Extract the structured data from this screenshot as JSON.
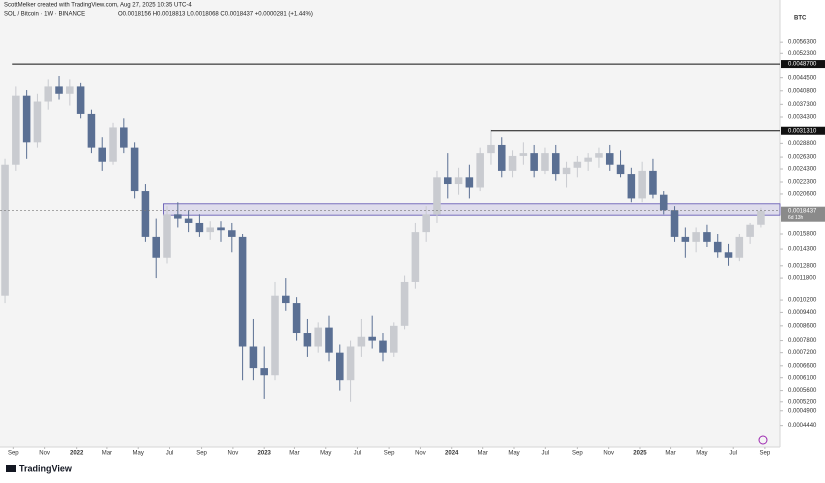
{
  "header": {
    "credit": "ScottMelker created with TradingView.com, Aug 27, 2025 10:35 UTC-4",
    "symbol": "SOL / Bitcoin · 1W · BINANCE",
    "ohlc": "O0.0018156 H0.0018813 L0.0018068 C0.0018437 +0.0000281 (+1.44%)"
  },
  "footer": {
    "logo": "TradingView"
  },
  "chart_data": {
    "type": "candlestick",
    "log_scale": true,
    "grid": false,
    "currency": "BTC",
    "up_color": "#c9cbd0",
    "down_color": "#5a6f93",
    "xlim": [
      -1.4,
      215.3
    ],
    "xticks": [
      {
        "value": 2.3,
        "label": "Sep"
      },
      {
        "value": 11.0,
        "label": "Nov"
      },
      {
        "value": 19.9,
        "label": "2022"
      },
      {
        "value": 28.3,
        "label": "Mar"
      },
      {
        "value": 37.0,
        "label": "May"
      },
      {
        "value": 45.7,
        "label": "Jul"
      },
      {
        "value": 54.6,
        "label": "Sep"
      },
      {
        "value": 63.3,
        "label": "Nov"
      },
      {
        "value": 72.0,
        "label": "2023"
      },
      {
        "value": 80.4,
        "label": "Mar"
      },
      {
        "value": 89.1,
        "label": "May"
      },
      {
        "value": 97.9,
        "label": "Jul"
      },
      {
        "value": 106.7,
        "label": "Sep"
      },
      {
        "value": 115.4,
        "label": "Nov"
      },
      {
        "value": 124.1,
        "label": "2024"
      },
      {
        "value": 132.7,
        "label": "Mar"
      },
      {
        "value": 141.4,
        "label": "May"
      },
      {
        "value": 150.1,
        "label": "Jul"
      },
      {
        "value": 159.0,
        "label": "Sep"
      },
      {
        "value": 167.7,
        "label": "Nov"
      },
      {
        "value": 176.4,
        "label": "2025"
      },
      {
        "value": 184.9,
        "label": "Mar"
      },
      {
        "value": 193.6,
        "label": "May"
      },
      {
        "value": 202.3,
        "label": "Jul"
      },
      {
        "value": 211.1,
        "label": "Sep"
      }
    ],
    "ylim": [
      0.000388,
      0.00706
    ],
    "yticks": [
      {
        "value": 0.00563,
        "label": "0.0056300"
      },
      {
        "value": 0.00523,
        "label": "0.0052300"
      },
      {
        "value": 0.00445,
        "label": "0.0044500"
      },
      {
        "value": 0.00408,
        "label": "0.0040800"
      },
      {
        "value": 0.00373,
        "label": "0.0037300"
      },
      {
        "value": 0.00343,
        "label": "0.0034300"
      },
      {
        "value": 0.00288,
        "label": "0.0028800"
      },
      {
        "value": 0.00263,
        "label": "0.0026300"
      },
      {
        "value": 0.00243,
        "label": "0.0024300"
      },
      {
        "value": 0.00223,
        "label": "0.0022300"
      },
      {
        "value": 0.00206,
        "label": "0.0020600"
      },
      {
        "value": 0.00158,
        "label": "0.0015800"
      },
      {
        "value": 0.00143,
        "label": "0.0014300"
      },
      {
        "value": 0.00128,
        "label": "0.0012800"
      },
      {
        "value": 0.00118,
        "label": "0.0011800"
      },
      {
        "value": 0.00102,
        "label": "0.0010200"
      },
      {
        "value": 0.00094,
        "label": "0.0009400"
      },
      {
        "value": 0.00086,
        "label": "0.0008600"
      },
      {
        "value": 0.00078,
        "label": "0.0007800"
      },
      {
        "value": 0.00072,
        "label": "0.0007200"
      },
      {
        "value": 0.00066,
        "label": "0.0006600"
      },
      {
        "value": 0.00061,
        "label": "0.0006100"
      },
      {
        "value": 0.00056,
        "label": "0.0005600"
      },
      {
        "value": 0.00052,
        "label": "0.0005200"
      },
      {
        "value": 0.00049,
        "label": "0.0004900"
      },
      {
        "value": 0.000444,
        "label": "0.0004440"
      }
    ],
    "x": [
      0,
      3,
      6,
      9,
      12,
      15,
      18,
      21,
      24,
      27,
      30,
      33,
      36,
      39,
      42,
      45,
      48,
      51,
      54,
      57,
      60,
      63,
      66,
      69,
      72,
      75,
      78,
      81,
      84,
      87,
      90,
      93,
      96,
      99,
      102,
      105,
      108,
      111,
      114,
      117,
      120,
      123,
      126,
      129,
      132,
      135,
      138,
      141,
      144,
      147,
      150,
      153,
      156,
      159,
      162,
      165,
      168,
      171,
      174,
      177,
      180,
      183,
      186,
      189,
      192,
      195,
      198,
      201,
      204,
      207,
      210
    ],
    "open": [
      0.00105,
      0.0025,
      0.00395,
      0.0029,
      0.0038,
      0.0042,
      0.004,
      0.0042,
      0.0035,
      0.0028,
      0.00255,
      0.0032,
      0.0028,
      0.0021,
      0.00155,
      0.00135,
      0.0018,
      0.00175,
      0.0017,
      0.0016,
      0.00165,
      0.00162,
      0.00155,
      0.00075,
      0.00065,
      0.00062,
      0.00105,
      0.001,
      0.00082,
      0.00075,
      0.00085,
      0.00072,
      0.0006,
      0.00075,
      0.0008,
      0.00078,
      0.00072,
      0.00086,
      0.00115,
      0.0016,
      0.0018,
      0.0023,
      0.0022,
      0.0023,
      0.00215,
      0.0027,
      0.00285,
      0.0024,
      0.00265,
      0.0027,
      0.0024,
      0.0027,
      0.00235,
      0.00245,
      0.00255,
      0.00262,
      0.0027,
      0.0025,
      0.00235,
      0.002,
      0.0024,
      0.00205,
      0.00185,
      0.00155,
      0.0015,
      0.0016,
      0.0015,
      0.0014,
      0.00135,
      0.00155,
      0.00168
    ],
    "high": [
      0.0026,
      0.0042,
      0.0041,
      0.004,
      0.0044,
      0.0045,
      0.0044,
      0.0043,
      0.0036,
      0.003,
      0.0033,
      0.0034,
      0.0029,
      0.0022,
      0.00175,
      0.0019,
      0.00195,
      0.00185,
      0.0018,
      0.00172,
      0.00172,
      0.0017,
      0.00158,
      0.0009,
      0.00075,
      0.00115,
      0.00118,
      0.00104,
      0.0009,
      0.00088,
      0.00092,
      0.00076,
      0.00078,
      0.0009,
      0.00092,
      0.00082,
      0.00088,
      0.0012,
      0.0017,
      0.0019,
      0.0024,
      0.0027,
      0.00245,
      0.0025,
      0.0028,
      0.00315,
      0.003,
      0.00275,
      0.0029,
      0.00285,
      0.0028,
      0.00285,
      0.00255,
      0.00265,
      0.0027,
      0.0028,
      0.00285,
      0.00275,
      0.00245,
      0.00255,
      0.0026,
      0.0021,
      0.0019,
      0.00165,
      0.00165,
      0.00168,
      0.00158,
      0.00148,
      0.00158,
      0.0017,
      0.00188
    ],
    "low": [
      0.001,
      0.0024,
      0.0026,
      0.0028,
      0.0036,
      0.00385,
      0.0037,
      0.0034,
      0.0027,
      0.0024,
      0.0025,
      0.0027,
      0.002,
      0.0015,
      0.00118,
      0.0013,
      0.00165,
      0.0016,
      0.00155,
      0.00152,
      0.0015,
      0.0014,
      0.0006,
      0.0006,
      0.00053,
      0.0006,
      0.00095,
      0.00078,
      0.0007,
      0.00072,
      0.00068,
      0.00056,
      0.00052,
      0.0007,
      0.00074,
      0.00068,
      0.0007,
      0.00084,
      0.0011,
      0.0015,
      0.0017,
      0.002,
      0.00205,
      0.002,
      0.0021,
      0.0025,
      0.0023,
      0.0023,
      0.0025,
      0.0023,
      0.00235,
      0.00225,
      0.00215,
      0.0023,
      0.0024,
      0.00245,
      0.0024,
      0.0023,
      0.00195,
      0.00195,
      0.002,
      0.0018,
      0.0015,
      0.00135,
      0.0014,
      0.00145,
      0.00135,
      0.00128,
      0.00132,
      0.00148,
      0.00165
    ],
    "close": [
      0.0025,
      0.00395,
      0.0029,
      0.0038,
      0.0042,
      0.004,
      0.0042,
      0.0035,
      0.0028,
      0.00255,
      0.0032,
      0.0028,
      0.0021,
      0.00155,
      0.00135,
      0.0018,
      0.00175,
      0.0017,
      0.0016,
      0.00165,
      0.00162,
      0.00155,
      0.00075,
      0.00065,
      0.00062,
      0.00105,
      0.001,
      0.00082,
      0.00075,
      0.00085,
      0.00072,
      0.0006,
      0.00075,
      0.0008,
      0.00078,
      0.00072,
      0.00086,
      0.00115,
      0.0016,
      0.0018,
      0.0023,
      0.0022,
      0.0023,
      0.00215,
      0.0027,
      0.00285,
      0.0024,
      0.00265,
      0.0027,
      0.0024,
      0.0027,
      0.00235,
      0.00245,
      0.00255,
      0.00262,
      0.0027,
      0.0025,
      0.00235,
      0.002,
      0.0024,
      0.00205,
      0.00185,
      0.00155,
      0.0015,
      0.0016,
      0.0015,
      0.0014,
      0.00135,
      0.00155,
      0.00168,
      0.00184
    ],
    "levels": [
      {
        "value": 0.00487,
        "label": "0.0048700",
        "start": 2
      },
      {
        "value": 0.003131,
        "label": "0.0031310",
        "start": 135
      }
    ],
    "zone": {
      "from": 0.00179,
      "to": 0.00193,
      "start": 44
    },
    "last": {
      "value": 0.0018437,
      "label": "0.0018437",
      "countdown": "6d 13h"
    }
  }
}
